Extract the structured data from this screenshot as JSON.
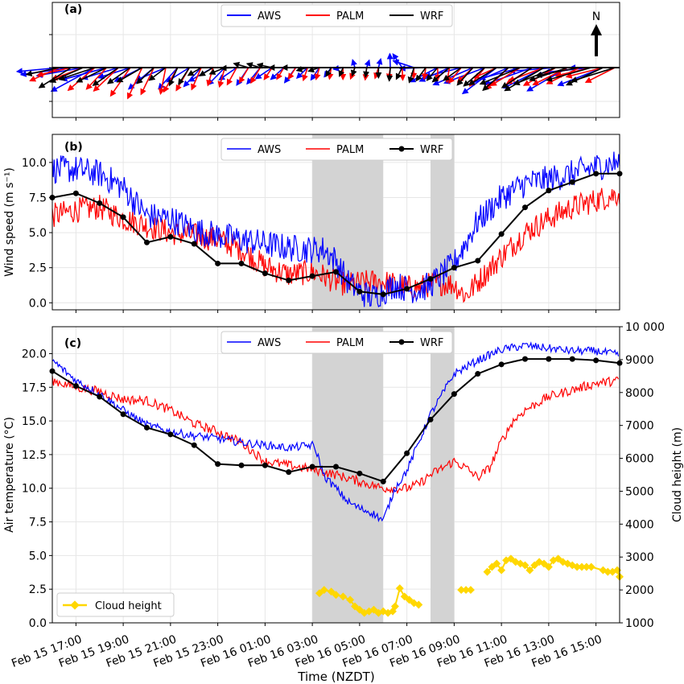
{
  "time_axis": {
    "label": "Time (NZDT)",
    "start": "Feb 15 16:00",
    "end": "Feb 16 16:00",
    "ticks": [
      "Feb 15 17:00",
      "Feb 15 19:00",
      "Feb 15 21:00",
      "Feb 15 23:00",
      "Feb 16 01:00",
      "Feb 16 03:00",
      "Feb 16 05:00",
      "Feb 16 07:00",
      "Feb 16 09:00",
      "Feb 16 11:00",
      "Feb 16 13:00",
      "Feb 16 15:00"
    ]
  },
  "shaded_periods": [
    {
      "start": "Feb 16 03:00",
      "end": "Feb 16 06:00"
    },
    {
      "start": "Feb 16 08:00",
      "end": "Feb 16 09:00"
    }
  ],
  "colors": {
    "AWS": "#0000ff",
    "PALM": "#ff0000",
    "WRF": "#000000",
    "cloud": "#ffd700",
    "shade": "#d3d3d3"
  },
  "chart_data": [
    {
      "panel": "(a)",
      "type": "line",
      "description_type": "wind vectors",
      "north_label": "N",
      "legend": [
        "AWS",
        "PALM",
        "WRF"
      ],
      "series": [
        {
          "name": "AWS",
          "x": [
            "Feb 15 16:30",
            "Feb 15 18:00",
            "Feb 15 20:00",
            "Feb 15 22:00",
            "Feb 16 00:00",
            "Feb 16 02:00",
            "Feb 16 04:00",
            "Feb 16 05:00",
            "Feb 16 06:00",
            "Feb 16 08:00",
            "Feb 16 10:00",
            "Feb 16 12:00",
            "Feb 16 14:00"
          ],
          "direction_deg": [
            80,
            70,
            60,
            50,
            45,
            40,
            30,
            190,
            200,
            70,
            65,
            70,
            75
          ],
          "speed": [
            9,
            9,
            6,
            5,
            4,
            3,
            1.5,
            0.5,
            1,
            6,
            8,
            9,
            9
          ]
        },
        {
          "name": "PALM",
          "x": [
            "Feb 15 16:30",
            "Feb 15 18:00",
            "Feb 15 20:00",
            "Feb 15 22:00",
            "Feb 16 00:00",
            "Feb 16 02:00",
            "Feb 16 04:00",
            "Feb 16 05:00",
            "Feb 16 06:00",
            "Feb 16 08:00",
            "Feb 16 10:00",
            "Feb 16 12:00",
            "Feb 16 14:00"
          ],
          "direction_deg": [
            75,
            60,
            30,
            20,
            25,
            30,
            15,
            5,
            10,
            5,
            45,
            65,
            70
          ],
          "speed": [
            6,
            6,
            6,
            4,
            3,
            2,
            1.5,
            1.5,
            1.5,
            1.5,
            4,
            6,
            7
          ]
        },
        {
          "name": "WRF",
          "x": [
            "Feb 15 16:30",
            "Feb 15 18:00",
            "Feb 15 20:00",
            "Feb 15 22:00",
            "Feb 16 00:00",
            "Feb 16 02:00",
            "Feb 16 04:00",
            "Feb 16 05:00",
            "Feb 16 06:00",
            "Feb 16 08:00",
            "Feb 16 10:00",
            "Feb 16 12:00",
            "Feb 16 14:00"
          ],
          "direction_deg": [
            70,
            65,
            45,
            35,
            100,
            95,
            40,
            5,
            10,
            30,
            55,
            65,
            70
          ],
          "speed": [
            7.5,
            7,
            4.5,
            2.8,
            2,
            2,
            1,
            0.6,
            1.5,
            2.5,
            5,
            8,
            9
          ]
        }
      ]
    },
    {
      "panel": "(b)",
      "type": "line",
      "ylabel": "Wind speed (m s⁻¹)",
      "ylim": [
        -0.5,
        12
      ],
      "yticks": [
        "0.0",
        "2.5",
        "5.0",
        "7.5",
        "10.0"
      ],
      "legend": [
        "AWS",
        "PALM",
        "WRF"
      ],
      "series": [
        {
          "name": "AWS",
          "x_hours": [
            0,
            1,
            2,
            3,
            4,
            5,
            6,
            7,
            8,
            9,
            10,
            11,
            11.5,
            12,
            12.5,
            13,
            13.5,
            14,
            14.5,
            15,
            15.5,
            16,
            16.5,
            17,
            18,
            19,
            20,
            21,
            22,
            23,
            24
          ],
          "values": [
            9.5,
            9.5,
            9.2,
            8.2,
            6.2,
            6.0,
            5.2,
            4.8,
            4.5,
            4.2,
            3.9,
            3.8,
            3.8,
            3.0,
            1.5,
            0.8,
            0.4,
            0.8,
            1.3,
            1.0,
            0.9,
            1.3,
            2.0,
            2.8,
            5.8,
            7.5,
            8.5,
            8.8,
            9.2,
            9.7,
            10.0
          ],
          "noise": 1.0
        },
        {
          "name": "PALM",
          "x_hours": [
            0,
            1,
            2,
            3,
            4,
            5,
            6,
            7,
            8,
            9,
            10,
            11,
            11.5,
            12,
            12.5,
            13,
            13.5,
            14,
            14.5,
            15,
            15.5,
            16,
            16.5,
            17,
            17.5,
            18,
            19,
            20,
            21,
            22,
            23,
            24
          ],
          "values": [
            6.2,
            6.6,
            6.8,
            6.0,
            5.5,
            5.0,
            4.8,
            4.5,
            3.8,
            2.6,
            2.0,
            2.2,
            1.9,
            1.5,
            1.3,
            1.4,
            1.5,
            1.5,
            1.3,
            1.1,
            1.1,
            1.3,
            1.4,
            1.3,
            0.5,
            1.5,
            3.3,
            5.0,
            6.0,
            6.8,
            7.3,
            7.8
          ],
          "noise": 0.9
        },
        {
          "name": "WRF",
          "x_hours": [
            0,
            1,
            2,
            3,
            4,
            5,
            6,
            7,
            8,
            9,
            10,
            11,
            12,
            13,
            14,
            15,
            16,
            17,
            18,
            19,
            20,
            21,
            22,
            23,
            24
          ],
          "values": [
            7.5,
            7.8,
            7.1,
            6.1,
            4.3,
            4.7,
            4.2,
            2.8,
            2.8,
            2.1,
            1.6,
            1.9,
            2.2,
            0.8,
            0.6,
            1.0,
            1.7,
            2.5,
            3.0,
            4.9,
            6.8,
            8.0,
            8.6,
            9.2,
            9.2
          ]
        }
      ]
    },
    {
      "panel": "(c)",
      "type": "line",
      "ylabel": "Air temperature (°C)",
      "ylabel_right": "Cloud height (m)",
      "ylim": [
        0,
        22
      ],
      "ylim_right": [
        1000,
        10000
      ],
      "yticks": [
        "0.0",
        "2.5",
        "5.0",
        "7.5",
        "10.0",
        "12.5",
        "15.0",
        "17.5",
        "20.0"
      ],
      "yticks_right": [
        "1000",
        "2000",
        "3000",
        "4000",
        "5000",
        "6000",
        "7000",
        "8000",
        "9000",
        "10 000"
      ],
      "legend": [
        "AWS",
        "PALM",
        "WRF"
      ],
      "legend_cloud": "Cloud height",
      "series": [
        {
          "name": "AWS",
          "x_hours": [
            0,
            1,
            2,
            3,
            4,
            5,
            6,
            7,
            8,
            9,
            10,
            11,
            11.2,
            11.5,
            12,
            12.5,
            13,
            13.5,
            14,
            14.5,
            15,
            16,
            17,
            18,
            19,
            20,
            21,
            22,
            23,
            24
          ],
          "values": [
            19.5,
            18.0,
            17.0,
            15.8,
            14.7,
            14.2,
            13.9,
            13.7,
            13.4,
            13.2,
            13.0,
            13.2,
            12.6,
            10.9,
            10.0,
            9.0,
            8.5,
            8.2,
            7.6,
            10.0,
            11.3,
            15.5,
            18.5,
            19.5,
            20.3,
            20.6,
            20.4,
            20.2,
            20.2,
            19.9
          ],
          "noise": 0.3
        },
        {
          "name": "PALM",
          "x_hours": [
            0,
            1,
            2,
            3,
            4,
            5,
            6,
            7,
            8,
            9,
            10,
            11,
            12,
            13,
            14,
            15,
            15.5,
            16,
            16.5,
            17,
            17.5,
            18,
            18.5,
            19,
            19.5,
            20,
            21,
            22,
            23,
            24
          ],
          "values": [
            18.0,
            17.5,
            17.2,
            16.6,
            16.5,
            15.8,
            14.8,
            14.2,
            13.4,
            12.0,
            11.7,
            11.4,
            11.0,
            10.5,
            10.0,
            10.0,
            10.3,
            11.0,
            11.5,
            12.0,
            11.5,
            10.8,
            11.5,
            13.5,
            15.0,
            15.8,
            16.8,
            17.3,
            17.8,
            18.0
          ],
          "noise": 0.35
        },
        {
          "name": "WRF",
          "x_hours": [
            0,
            1,
            2,
            3,
            4,
            5,
            6,
            7,
            8,
            9,
            10,
            11,
            12,
            13,
            14,
            15,
            16,
            17,
            18,
            19,
            20,
            21,
            22,
            23,
            24
          ],
          "values": [
            18.7,
            17.6,
            16.8,
            15.5,
            14.5,
            14.0,
            13.2,
            11.8,
            11.7,
            11.7,
            11.2,
            11.6,
            11.6,
            11.1,
            10.5,
            12.6,
            15.1,
            17.0,
            18.5,
            19.2,
            19.6,
            19.6,
            19.6,
            19.5,
            19.3
          ]
        },
        {
          "name": "Cloud height",
          "axis": "right",
          "x_hours": [
            11.3,
            11.5,
            11.8,
            12.0,
            12.3,
            12.6,
            12.8,
            13.0,
            13.2,
            13.4,
            13.6,
            13.8,
            14.0,
            14.2,
            14.4,
            14.5,
            14.7,
            14.9,
            15.1,
            15.3,
            15.5,
            17.3,
            17.5,
            17.7,
            18.4,
            18.6,
            18.8,
            19.0,
            19.2,
            19.4,
            19.6,
            19.8,
            20.0,
            20.2,
            20.4,
            20.6,
            20.8,
            21.0,
            21.2,
            21.4,
            21.6,
            21.8,
            22.0,
            22.2,
            22.4,
            22.6,
            22.8,
            23.3,
            23.5,
            23.7,
            23.9,
            24.0
          ],
          "values": [
            1900,
            2000,
            1950,
            1850,
            1800,
            1700,
            1500,
            1400,
            1300,
            1350,
            1400,
            1300,
            1350,
            1300,
            1350,
            1500,
            2050,
            1800,
            1700,
            1600,
            1550,
            2000,
            2000,
            2000,
            2550,
            2700,
            2800,
            2600,
            2900,
            2950,
            2850,
            2800,
            2750,
            2600,
            2750,
            2850,
            2800,
            2700,
            2900,
            2950,
            2850,
            2800,
            2750,
            2700,
            2700,
            2700,
            2700,
            2600,
            2550,
            2550,
            2600,
            2400
          ]
        }
      ]
    }
  ]
}
